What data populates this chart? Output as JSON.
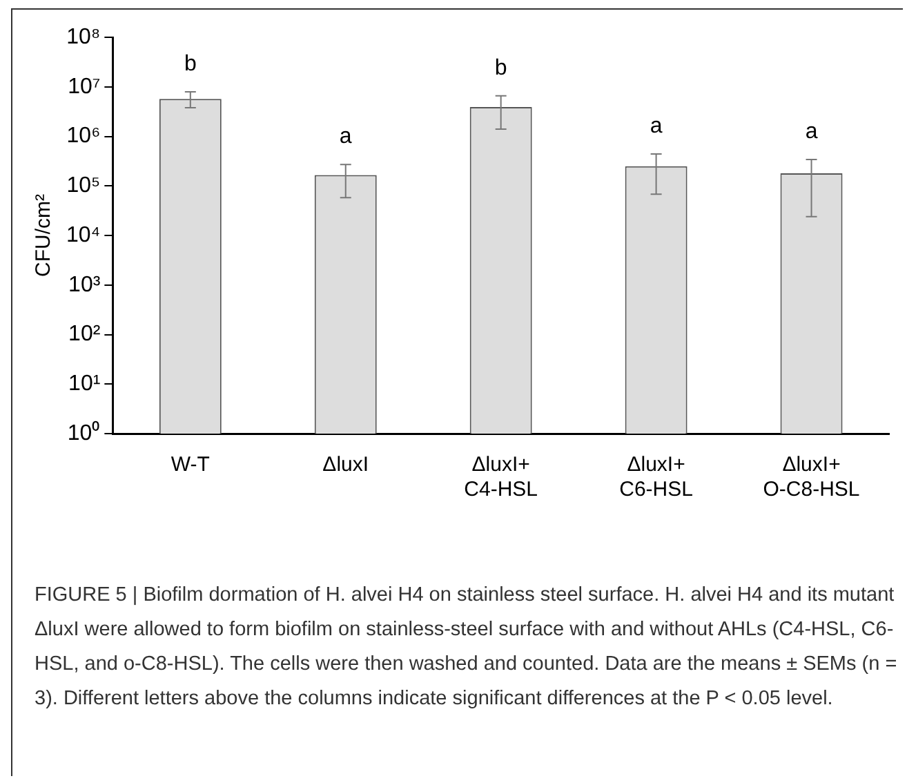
{
  "chart_data": {
    "type": "bar",
    "ylabel": "CFU/cm²",
    "categories": [
      "W-T",
      "ΔluxI",
      "ΔluxI+\nC4-HSL",
      "ΔluxI+\nC6-HSL",
      "ΔluxI+\nO-C8-HSL"
    ],
    "values": [
      5700000,
      166000,
      3900000,
      250000,
      180000
    ],
    "errors": [
      [
        3800000,
        7900000
      ],
      [
        58000,
        270000
      ],
      [
        1400000,
        6600000
      ],
      [
        68000,
        440000
      ],
      [
        24000,
        340000
      ]
    ],
    "color": "#dddddd",
    "value_labels": [
      "b",
      "a",
      "b",
      "a",
      "a"
    ],
    "log": true,
    "ylim": [
      1,
      100000000
    ],
    "yticks": [
      {
        "value": 1,
        "label": "10⁰"
      },
      {
        "value": 10,
        "label": "10¹"
      },
      {
        "value": 100,
        "label": "10²"
      },
      {
        "value": 1000,
        "label": "10³"
      },
      {
        "value": 10000,
        "label": "10⁴"
      },
      {
        "value": 100000,
        "label": "10⁵"
      },
      {
        "value": 1000000,
        "label": "10⁶"
      },
      {
        "value": 10000000,
        "label": "10⁷"
      },
      {
        "value": 100000000,
        "label": "10⁸"
      }
    ],
    "grid": false,
    "legend": false,
    "annotations": [
      "FIGURE 5 | Biofilm dormation of H. alvei H4 on stainless steel surface. H. alvei H4 and its mutant ΔluxI were allowed to form biofilm on stainless-steel surface with and without AHLs (C4-HSL, C6-HSL, and o-C8-HSL). The cells were then washed and counted. Data are the means ± SEMs (n = 3). Different letters above the columns indicate significant differences at the P < 0.05 level."
    ]
  }
}
